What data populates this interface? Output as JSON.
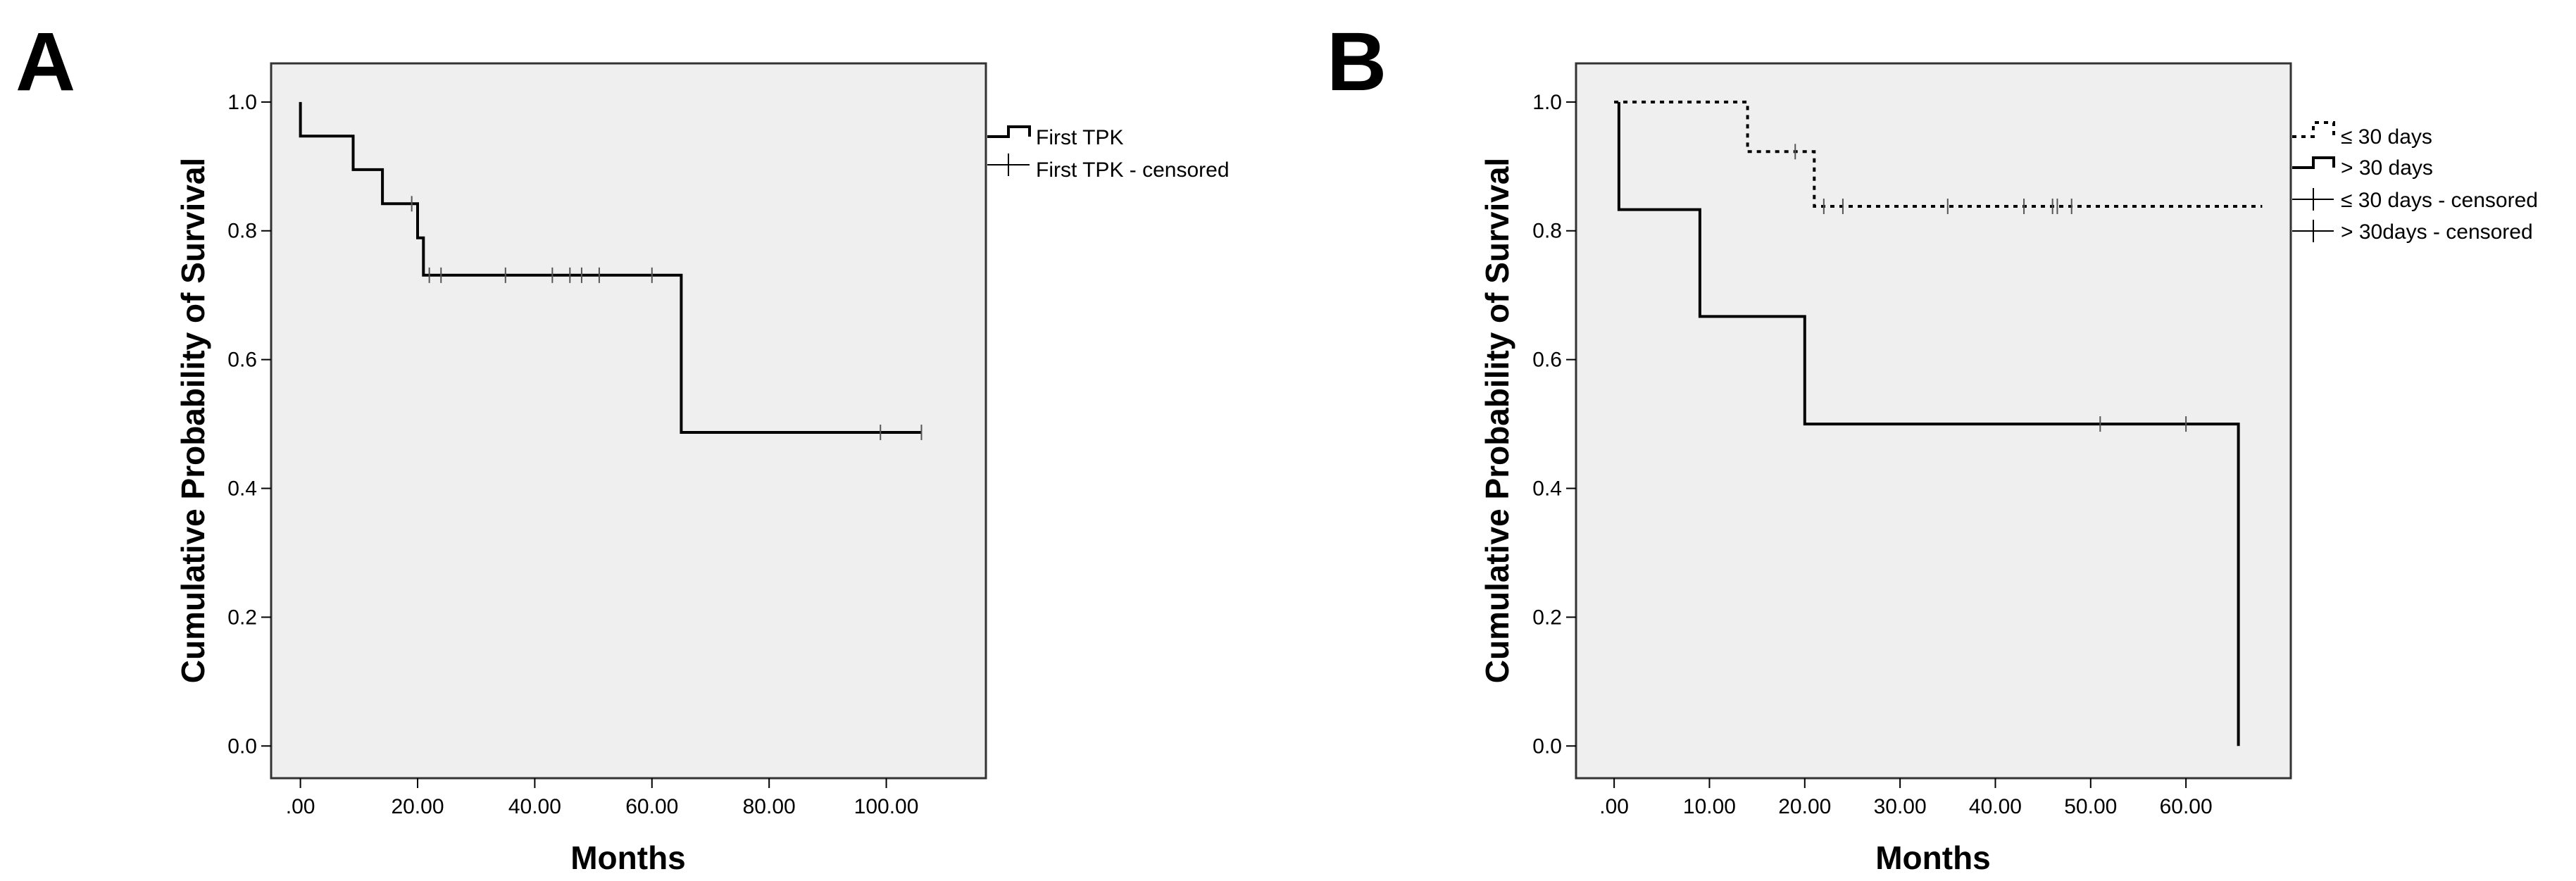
{
  "chart_data": [
    {
      "type": "line",
      "panel_label": "A",
      "xlabel": "Months",
      "ylabel": "Cumulative Probability of Survival",
      "xlim": [
        -5,
        117
      ],
      "ylim": [
        -0.05,
        1.06
      ],
      "xticks": [
        0,
        20,
        40,
        60,
        80,
        100
      ],
      "xtick_labels": [
        ".00",
        "20.00",
        "40.00",
        "60.00",
        "80.00",
        "100.00"
      ],
      "yticks": [
        0,
        0.2,
        0.4,
        0.6,
        0.8,
        1.0
      ],
      "ytick_labels": [
        "0.0",
        "0.2",
        "0.4",
        "0.6",
        "0.8",
        "1.0"
      ],
      "grid": false,
      "plot_background": "#efefef",
      "legend_position": "outside-right-top",
      "series": [
        {
          "name": "First TPK",
          "line_style": "solid",
          "color": "#000000",
          "step_points": [
            [
              0,
              1.0
            ],
            [
              0,
              0.947
            ],
            [
              9,
              0.947
            ],
            [
              9,
              0.895
            ],
            [
              14,
              0.895
            ],
            [
              14,
              0.842
            ],
            [
              20,
              0.842
            ],
            [
              20,
              0.789
            ],
            [
              21,
              0.789
            ],
            [
              21,
              0.731
            ],
            [
              65,
              0.731
            ],
            [
              65,
              0.487
            ],
            [
              106,
              0.487
            ]
          ]
        }
      ],
      "censored_legend": [
        "First TPK - censored"
      ],
      "censored": [
        {
          "x": 19,
          "y": 0.842
        },
        {
          "x": 22,
          "y": 0.731
        },
        {
          "x": 24,
          "y": 0.731
        },
        {
          "x": 35,
          "y": 0.731
        },
        {
          "x": 43,
          "y": 0.731
        },
        {
          "x": 46,
          "y": 0.731
        },
        {
          "x": 48,
          "y": 0.731
        },
        {
          "x": 51,
          "y": 0.731
        },
        {
          "x": 60,
          "y": 0.731
        },
        {
          "x": 99,
          "y": 0.487
        },
        {
          "x": 106,
          "y": 0.487
        }
      ]
    },
    {
      "type": "line",
      "panel_label": "B",
      "xlabel": "Months",
      "ylabel": "Cumulative Probability of Survival",
      "xlim": [
        -4,
        71
      ],
      "ylim": [
        -0.05,
        1.06
      ],
      "xticks": [
        0,
        10,
        20,
        30,
        40,
        50,
        60
      ],
      "xtick_labels": [
        ".00",
        "10.00",
        "20.00",
        "30.00",
        "40.00",
        "50.00",
        "60.00"
      ],
      "yticks": [
        0,
        0.2,
        0.4,
        0.6,
        0.8,
        1.0
      ],
      "ytick_labels": [
        "0.0",
        "0.2",
        "0.4",
        "0.6",
        "0.8",
        "1.0"
      ],
      "grid": false,
      "plot_background": "#efefef",
      "legend_position": "outside-right-top",
      "series": [
        {
          "name": "≤ 30 days",
          "line_style": "dotted",
          "color": "#000000",
          "step_points": [
            [
              0,
              1.0
            ],
            [
              14,
              1.0
            ],
            [
              14,
              0.923
            ],
            [
              21,
              0.923
            ],
            [
              21,
              0.838
            ],
            [
              68,
              0.838
            ]
          ]
        },
        {
          "name": "> 30 days",
          "line_style": "solid",
          "color": "#000000",
          "step_points": [
            [
              0.5,
              1.0
            ],
            [
              0.5,
              0.833
            ],
            [
              9,
              0.833
            ],
            [
              9,
              0.667
            ],
            [
              20,
              0.667
            ],
            [
              20,
              0.5
            ],
            [
              65.5,
              0.5
            ],
            [
              65.5,
              0.0
            ]
          ]
        }
      ],
      "censored_legend": [
        "≤ 30 days - censored",
        "> 30days - censored"
      ],
      "censored": [
        {
          "x": 19,
          "y": 0.923
        },
        {
          "x": 22,
          "y": 0.838
        },
        {
          "x": 24,
          "y": 0.838
        },
        {
          "x": 35,
          "y": 0.838
        },
        {
          "x": 43,
          "y": 0.838
        },
        {
          "x": 46,
          "y": 0.838
        },
        {
          "x": 46.5,
          "y": 0.838
        },
        {
          "x": 48,
          "y": 0.838
        },
        {
          "x": 51,
          "y": 0.5
        },
        {
          "x": 60,
          "y": 0.5
        }
      ]
    }
  ]
}
